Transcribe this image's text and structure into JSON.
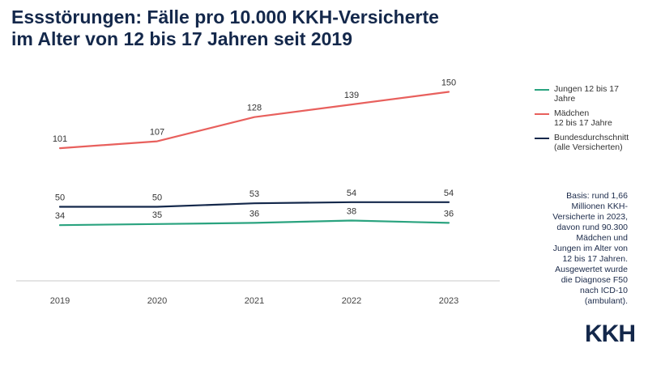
{
  "title": {
    "line1": "Essstörungen: Fälle pro 10.000 KKH-Versicherte",
    "line2": "im Alter von 12 bis 17 Jahren seit 2019"
  },
  "chart_data": {
    "type": "line",
    "categories": [
      "2019",
      "2020",
      "2021",
      "2022",
      "2023"
    ],
    "series": [
      {
        "name": "Jungen 12 bis 17 Jahre",
        "color": "#2aa37f",
        "values": [
          34,
          35,
          36,
          38,
          36
        ]
      },
      {
        "name": "Mädchen 12 bis 17 Jahre",
        "color": "#e8605d",
        "values": [
          101,
          107,
          128,
          139,
          150
        ]
      },
      {
        "name": "Bundesdurchschnitt (alle Versicherten)",
        "color": "#14284b",
        "values": [
          50,
          50,
          53,
          54,
          54
        ]
      }
    ],
    "grid": false,
    "legend_position": "right"
  },
  "legend": [
    {
      "line1": "Jungen 12 bis 17",
      "line2": "Jahre",
      "color": "#2aa37f"
    },
    {
      "line1": "Mädchen",
      "line2": "12 bis 17 Jahre",
      "color": "#e8605d"
    },
    {
      "line1": "Bundesdurchschnitt",
      "line2": "(alle Versicherten)",
      "color": "#14284b"
    }
  ],
  "basis": [
    "Basis: rund 1,66",
    "Millionen KKH-",
    "Versicherte in 2023,",
    "davon rund 90.300",
    "Mädchen und",
    "Jungen im Alter von",
    "12 bis 17 Jahren.",
    "Ausgewertet wurde",
    "die Diagnose F50",
    "nach ICD-10",
    "(ambulant)."
  ],
  "logo": "KKH"
}
